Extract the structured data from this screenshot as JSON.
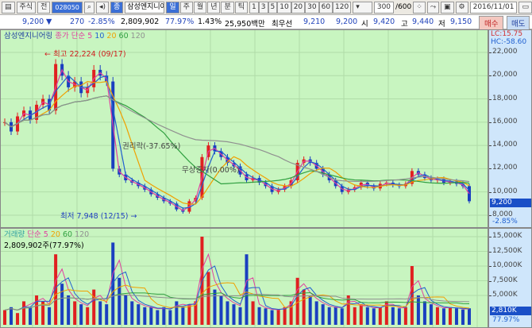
{
  "toolbar": {
    "market": "주식",
    "market_type": "전",
    "code": "028050",
    "stock_name": "삼성엔지니어",
    "periods": [
      "일",
      "주",
      "월",
      "년",
      "분",
      "틱"
    ],
    "selected_period": "일",
    "intervals": [
      "1",
      "3",
      "5",
      "10",
      "20",
      "30",
      "60",
      "120"
    ],
    "count": "300",
    "count_total": "/600",
    "date": "2016/11/01"
  },
  "quote": {
    "price": "9,200",
    "change_arrow": "▼",
    "change": "270",
    "change_pct": "-2.85%",
    "volume": "2,809,902",
    "volume_ratio": "77.97%",
    "turnover": "1.43%",
    "amount": "25,950백만",
    "best_label": "최우선",
    "ask": "9,210",
    "bid": "9,200",
    "open_label": "시",
    "open": "9,420",
    "high_label": "고",
    "high": "9,440",
    "low_label": "저",
    "low": "9,150",
    "buy": "매수",
    "sell": "매도"
  },
  "price_pane": {
    "legend_name": "삼성엔지니어링",
    "legend_ma": "종가 단순 5",
    "ma_periods": [
      "10",
      "20",
      "60",
      "120"
    ],
    "lc": "LC:15.75",
    "hc": "HC:-58.60",
    "y_ticks": [
      "22,000",
      "20,000",
      "18,000",
      "16,000",
      "14,000",
      "12,000",
      "10,000",
      "8,000"
    ],
    "current_price": "9,200",
    "current_pct": "-2.85%",
    "high_note": "최고 22,224 (09/17)",
    "low_note": "최저 7,948 (12/15)",
    "event1": "권리락(-37.65%)",
    "event2": "무상증자(0.00%)"
  },
  "volume_pane": {
    "legend_name": "거래량",
    "legend_ma": "단순 5",
    "ma_periods": [
      "20",
      "60",
      "120"
    ],
    "volume_text": "2,809,902주(77.97%)",
    "y_ticks": [
      "15,000K",
      "12,500K",
      "10,000K",
      "7,500K",
      "5,000K"
    ],
    "current_volume": "2,810K",
    "current_pct": "77.97%"
  },
  "colors": {
    "up": "#e02020",
    "down": "#1a3fc0",
    "ma5": "#e040a0",
    "ma10": "#2060d0",
    "ma20": "#f0a000",
    "ma60": "#30a040",
    "ma120": "#909090"
  },
  "chart_data": {
    "type": "candlestick",
    "closes": [
      16000,
      15200,
      16500,
      17000,
      16200,
      17500,
      18000,
      17000,
      21000,
      20000,
      19000,
      19500,
      18500,
      19000,
      20500,
      20000,
      19500,
      12000,
      11500,
      11000,
      10800,
      10500,
      10200,
      9800,
      9500,
      9200,
      9000,
      8500,
      8300,
      9200,
      9500,
      13000,
      14000,
      13500,
      13000,
      12500,
      12200,
      11500,
      11000,
      11200,
      10800,
      10500,
      10000,
      10200,
      10500,
      11000,
      12500,
      12800,
      12500,
      12000,
      11500,
      11000,
      10500,
      10000,
      10200,
      10400,
      10800,
      10500,
      10300,
      10700,
      10800,
      10600,
      10500,
      10700,
      11800,
      11500,
      11200,
      11000,
      11100,
      10800,
      10900,
      10700,
      10500,
      9200
    ],
    "volumes": [
      2500,
      3000,
      2000,
      4000,
      3000,
      5000,
      4000,
      3000,
      12000,
      7000,
      5000,
      4000,
      3500,
      3000,
      6000,
      4000,
      3500,
      14000,
      8000,
      5000,
      4000,
      3500,
      3000,
      3000,
      2500,
      3000,
      2500,
      4000,
      3000,
      3500,
      4000,
      15000,
      9000,
      6000,
      5000,
      4000,
      3500,
      3000,
      12000,
      4000,
      3000,
      2800,
      2500,
      2600,
      3000,
      4000,
      8000,
      6000,
      5000,
      4000,
      3500,
      3000,
      3000,
      2800,
      5000,
      3000,
      3500,
      3000,
      2800,
      3000,
      4000,
      3000,
      2800,
      3000,
      10000,
      5000,
      4000,
      3500,
      3000,
      2800,
      3000,
      2800,
      2600,
      2810
    ]
  }
}
